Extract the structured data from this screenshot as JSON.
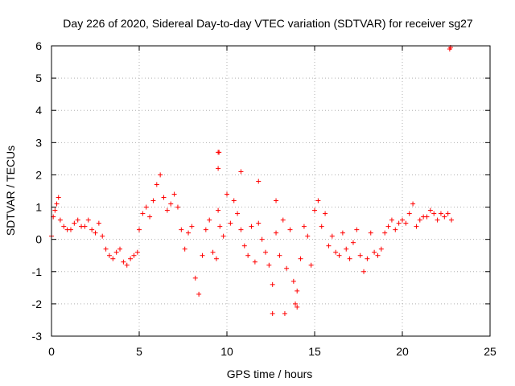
{
  "chart_data": {
    "type": "scatter",
    "title": "Day 226 of 2020, Sidereal Day-to-day VTEC variation (SDTVAR) for receiver sg27",
    "xlabel": "GPS time / hours",
    "ylabel": "SDTVAR / TECUs",
    "xlim": [
      0,
      25
    ],
    "ylim": [
      -3,
      6
    ],
    "xticks": [
      "0",
      "5",
      "10",
      "15",
      "20",
      "25"
    ],
    "yticks": [
      "-3",
      "-2",
      "-1",
      "0",
      "1",
      "2",
      "3",
      "4",
      "5",
      "6"
    ],
    "grid": true,
    "marker": "plus",
    "color": "#ff0000",
    "series": [
      {
        "name": "SDTVAR",
        "x": [
          0.0,
          0.1,
          0.2,
          0.3,
          0.4,
          0.5,
          0.7,
          0.9,
          1.1,
          1.3,
          1.5,
          1.7,
          1.9,
          2.1,
          2.3,
          2.5,
          2.7,
          2.9,
          3.1,
          3.3,
          3.5,
          3.7,
          3.9,
          4.1,
          4.3,
          4.5,
          4.7,
          4.9,
          5.0,
          5.2,
          5.4,
          5.6,
          5.8,
          6.0,
          6.2,
          6.4,
          6.6,
          6.8,
          7.0,
          7.2,
          7.4,
          7.6,
          7.8,
          8.0,
          8.2,
          8.4,
          8.6,
          8.8,
          9.0,
          9.2,
          9.4,
          9.5,
          9.6,
          9.8,
          10.0,
          10.2,
          10.4,
          10.6,
          10.8,
          11.0,
          11.2,
          11.4,
          11.6,
          11.8,
          12.0,
          12.2,
          12.4,
          12.6,
          12.8,
          13.0,
          13.2,
          13.4,
          13.6,
          13.8,
          14.0,
          14.2,
          14.4,
          14.6,
          14.8,
          15.0,
          15.2,
          15.4,
          15.6,
          15.8,
          16.0,
          16.2,
          16.4,
          16.6,
          16.8,
          17.0,
          17.2,
          17.4,
          17.6,
          17.8,
          18.0,
          18.2,
          18.4,
          18.6,
          18.8,
          19.0,
          19.2,
          19.4,
          19.6,
          19.8,
          20.0,
          20.2,
          20.4,
          20.6,
          20.8,
          21.0,
          21.2,
          21.4,
          21.6,
          21.8,
          22.0,
          22.2,
          22.4,
          22.6,
          22.8,
          9.5,
          9.55,
          9.5,
          10.8,
          11.8,
          12.6,
          12.8,
          13.3,
          13.9,
          14.0,
          22.7,
          22.75
        ],
        "y": [
          0.1,
          0.7,
          0.9,
          1.1,
          1.3,
          0.6,
          0.4,
          0.3,
          0.3,
          0.5,
          0.6,
          0.4,
          0.4,
          0.6,
          0.3,
          0.2,
          0.5,
          0.1,
          -0.3,
          -0.5,
          -0.6,
          -0.4,
          -0.3,
          -0.7,
          -0.8,
          -0.6,
          -0.5,
          -0.4,
          0.3,
          0.8,
          1.0,
          0.7,
          1.2,
          1.7,
          2.0,
          1.3,
          0.9,
          1.1,
          1.4,
          1.0,
          0.3,
          -0.3,
          0.2,
          0.4,
          -1.2,
          -1.7,
          -0.5,
          0.3,
          0.6,
          -0.4,
          -0.6,
          0.9,
          0.4,
          0.1,
          1.4,
          0.5,
          1.2,
          0.8,
          0.3,
          -0.2,
          -0.5,
          0.4,
          -0.7,
          0.5,
          0.0,
          -0.4,
          -0.8,
          -1.4,
          0.2,
          -0.5,
          0.6,
          -0.9,
          0.3,
          -1.3,
          -1.6,
          -0.6,
          0.4,
          0.1,
          -0.8,
          0.9,
          1.2,
          0.4,
          0.8,
          -0.2,
          0.1,
          -0.4,
          -0.5,
          0.2,
          -0.3,
          -0.6,
          -0.1,
          0.3,
          -0.5,
          -1.0,
          -0.6,
          0.2,
          -0.4,
          -0.5,
          -0.3,
          0.2,
          0.4,
          0.6,
          0.3,
          0.5,
          0.6,
          0.5,
          0.8,
          1.1,
          0.4,
          0.6,
          0.7,
          0.7,
          0.9,
          0.8,
          0.6,
          0.8,
          0.7,
          0.8,
          0.6,
          2.7,
          2.7,
          2.2,
          2.1,
          1.8,
          -2.3,
          1.2,
          -2.3,
          -2.0,
          -2.1,
          5.9,
          5.95
        ]
      }
    ]
  }
}
